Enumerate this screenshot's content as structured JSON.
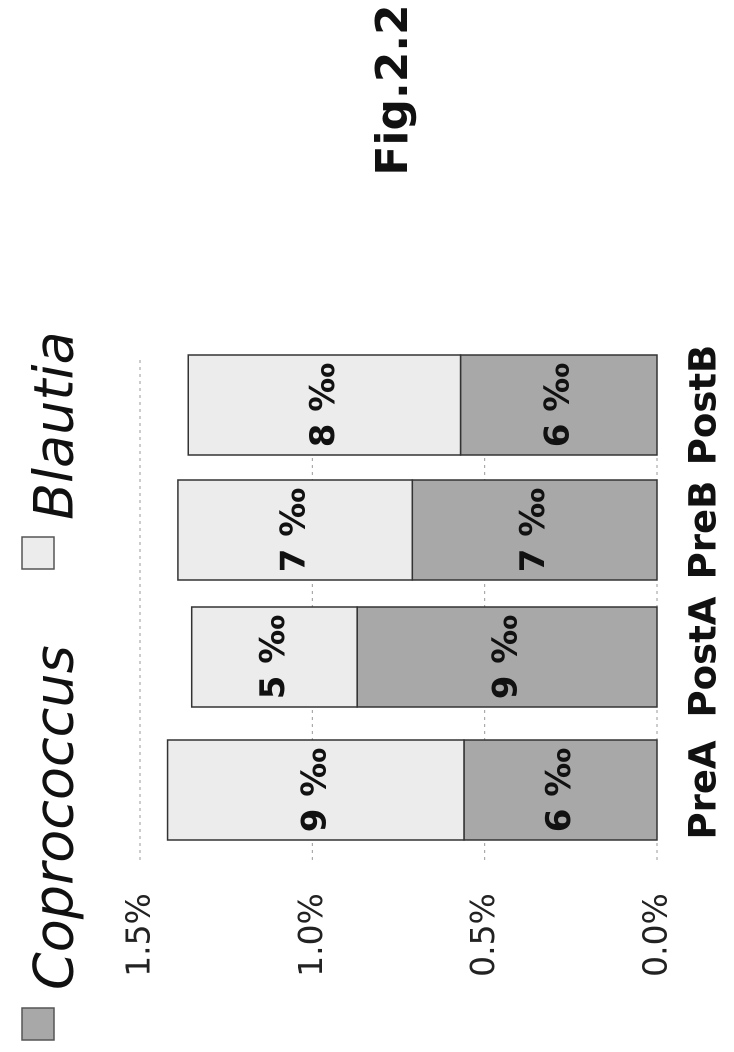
{
  "figure_label": "Fig.2.2",
  "chart_data": {
    "type": "bar",
    "stacked": true,
    "orientation": "vertical",
    "rotation": "page rotated 90° counter-clockwise",
    "categories": [
      "PreA",
      "PostA",
      "PreB",
      "PostB"
    ],
    "series": [
      {
        "name": "Coprococcus",
        "color": "#a8a8a8",
        "values": [
          0.56,
          0.87,
          0.71,
          0.57
        ],
        "labels": [
          "6 ‰",
          "9 ‰",
          "7 ‰",
          "6 ‰"
        ]
      },
      {
        "name": "Blautia",
        "color": "#ececec",
        "values": [
          0.86,
          0.48,
          0.68,
          0.79
        ],
        "labels": [
          "9 ‰",
          "5 ‰",
          "7 ‰",
          "8 ‰"
        ]
      }
    ],
    "y_ticks": [
      "0.0%",
      "0.5%",
      "1.0%",
      "1.5%"
    ],
    "ylim": [
      0,
      1.5
    ],
    "grid": true,
    "legend_position": "top"
  }
}
